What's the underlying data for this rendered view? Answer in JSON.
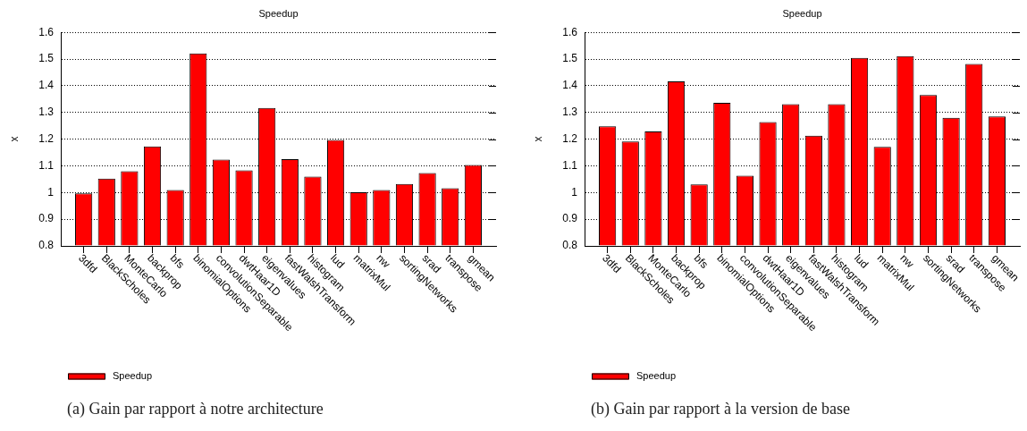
{
  "chart_data": [
    {
      "type": "bar",
      "title": "Speedup",
      "ylabel": "x",
      "categories": [
        "3dfd",
        "BlackScholes",
        "MonteCarlo",
        "backprop",
        "bfs",
        "binomialOptions",
        "convolutionSeparable",
        "dwtHaar1D",
        "eigenvalues",
        "fastWalshTransform",
        "histogram",
        "lud",
        "matrixMul",
        "nw",
        "sortingNetworks",
        "srad",
        "transpose",
        "gmean"
      ],
      "series": [
        {
          "name": "Speedup",
          "color": "#ff0000",
          "values": [
            0.997,
            1.052,
            1.08,
            1.173,
            1.009,
            1.521,
            1.123,
            1.083,
            1.317,
            1.125,
            1.06,
            1.197,
            1.001,
            1.009,
            1.032,
            1.073,
            1.016,
            1.103
          ]
        }
      ],
      "ylim": [
        0.8,
        1.6
      ],
      "yticks": [
        0.8,
        0.9,
        1,
        1.1,
        1.2,
        1.3,
        1.4,
        1.5,
        1.6
      ],
      "grid": "y",
      "legend": "bottom left",
      "annotations": [
        "(a) Gain par rapport à notre architecture"
      ]
    },
    {
      "type": "bar",
      "title": "Speedup",
      "ylabel": "x",
      "categories": [
        "3dfd",
        "BlackScholes",
        "MonteCarlo",
        "backprop",
        "bfs",
        "binomialOptions",
        "convolutionSeparable",
        "dwtHaar1D",
        "eigenvalues",
        "fastWalshTransform",
        "histogram",
        "lud",
        "matrixMul",
        "nw",
        "sortingNetworks",
        "srad",
        "transpose",
        "gmean"
      ],
      "series": [
        {
          "name": "Speedup",
          "color": "#ff0000",
          "values": [
            1.248,
            1.191,
            1.229,
            1.416,
            1.03,
            1.336,
            1.063,
            1.264,
            1.331,
            1.213,
            1.331,
            1.504,
            1.171,
            1.511,
            1.365,
            1.28,
            1.482,
            1.285
          ]
        }
      ],
      "ylim": [
        0.8,
        1.6
      ],
      "yticks": [
        0.8,
        0.9,
        1,
        1.1,
        1.2,
        1.3,
        1.4,
        1.5,
        1.6
      ],
      "grid": "y",
      "legend": "bottom left",
      "annotations": [
        "(b) Gain par rapport à la version de base"
      ]
    }
  ]
}
